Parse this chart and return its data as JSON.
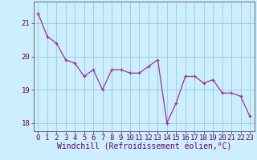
{
  "x": [
    0,
    1,
    2,
    3,
    4,
    5,
    6,
    7,
    8,
    9,
    10,
    11,
    12,
    13,
    14,
    15,
    16,
    17,
    18,
    19,
    20,
    21,
    22,
    23
  ],
  "y": [
    21.3,
    20.6,
    20.4,
    19.9,
    19.8,
    19.4,
    19.6,
    19.0,
    19.6,
    19.6,
    19.5,
    19.5,
    19.7,
    19.9,
    18.0,
    18.6,
    19.4,
    19.4,
    19.2,
    19.3,
    18.9,
    18.9,
    18.8,
    18.2
  ],
  "line_color": "#993399",
  "marker": "+",
  "bg_color": "#cceeff",
  "grid_color": "#99cccc",
  "xlabel": "Windchill (Refroidissement éolien,°C)",
  "xlim": [
    -0.5,
    23.5
  ],
  "ylim": [
    17.75,
    21.65
  ],
  "yticks": [
    18,
    19,
    20,
    21
  ],
  "xticks": [
    0,
    1,
    2,
    3,
    4,
    5,
    6,
    7,
    8,
    9,
    10,
    11,
    12,
    13,
    14,
    15,
    16,
    17,
    18,
    19,
    20,
    21,
    22,
    23
  ],
  "tick_fontsize": 6.5,
  "xlabel_fontsize": 7.0,
  "tick_color": "#660066",
  "axis_color": "#666666",
  "font_family": "monospace"
}
